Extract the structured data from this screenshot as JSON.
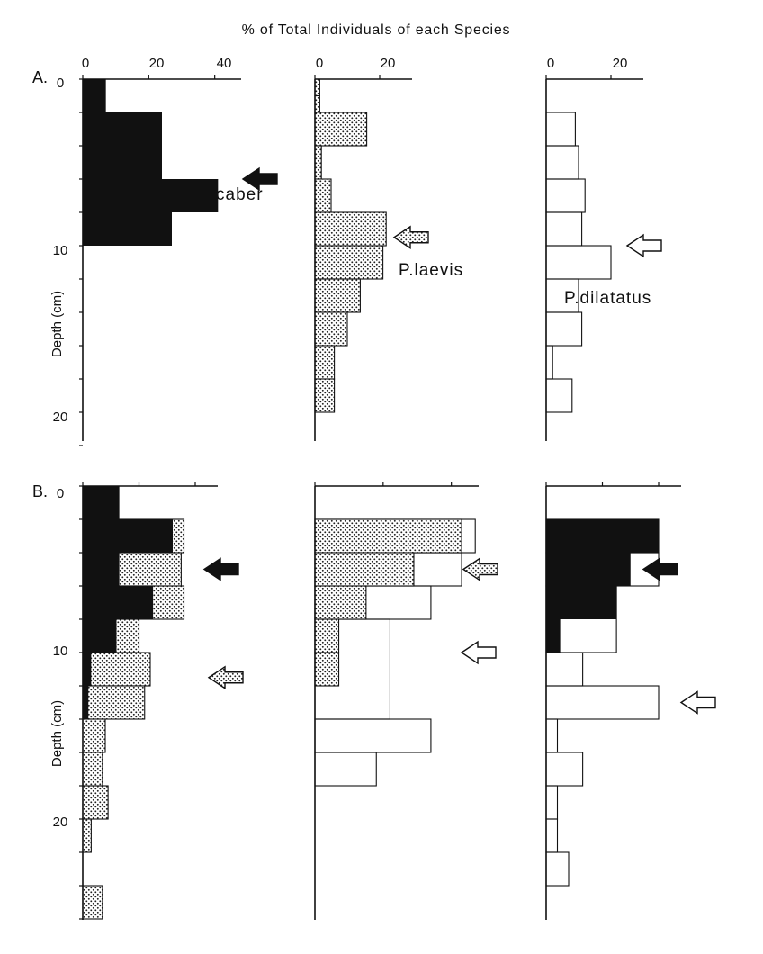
{
  "chart_data": {
    "type": "bar",
    "orientation": "horizontal-depth-histogram",
    "title": "% of Total Individuals of each Species",
    "ylabel": "Depth (cm)",
    "y_ticks": [
      "0",
      "10",
      "20"
    ],
    "panels": [
      {
        "label": "A.",
        "ylim": [
          0,
          22
        ],
        "columns": [
          {
            "species": "P.scaber",
            "x_ticks": [
              "0",
              "20",
              "40"
            ],
            "xlim": [
              0,
              48
            ],
            "arrow": {
              "style": "solid",
              "depth": 6
            },
            "series": [
              {
                "fill": "solid",
                "depth_bins": [
                  0,
                  2,
                  4,
                  6,
                  8
                ],
                "values": [
                  7,
                  24,
                  24,
                  41,
                  27
                ]
              }
            ]
          },
          {
            "species": "P.laevis",
            "x_ticks": [
              "0",
              "20"
            ],
            "xlim": [
              0,
              30
            ],
            "arrow": {
              "style": "stippled",
              "depth": 9.5
            },
            "series": [
              {
                "fill": "stippled",
                "depth_bins": [
                  0,
                  1,
                  2,
                  4,
                  6,
                  8,
                  10,
                  12,
                  14,
                  16,
                  18
                ],
                "values": [
                  1.5,
                  1.5,
                  16,
                  2,
                  5,
                  22,
                  21,
                  14,
                  10,
                  6,
                  6
                ]
              }
            ]
          },
          {
            "species": "P.dilatatus",
            "x_ticks": [
              "0",
              "20"
            ],
            "xlim": [
              0,
              30
            ],
            "arrow": {
              "style": "open",
              "depth": 10
            },
            "series": [
              {
                "fill": "open",
                "depth_bins": [
                  2,
                  4,
                  6,
                  8,
                  10,
                  12,
                  14,
                  16,
                  18
                ],
                "values": [
                  9,
                  10,
                  12,
                  11,
                  20,
                  10,
                  11,
                  2,
                  8
                ]
              }
            ]
          }
        ]
      },
      {
        "label": "B.",
        "ylim": [
          0,
          26
        ],
        "columns": [
          {
            "species": "P.scaber",
            "xlim": [
              0,
              48
            ],
            "arrows": [
              {
                "style": "solid",
                "depth": 5
              },
              {
                "style": "stippled",
                "depth": 11.5
              }
            ],
            "series": [
              {
                "fill": "solid",
                "depth_bins": [
                  0,
                  2,
                  4,
                  6,
                  8,
                  10,
                  12
                ],
                "values": [
                  13,
                  32,
                  13,
                  25,
                  12,
                  3,
                  2
                ]
              },
              {
                "fill": "stippled",
                "depth_bins": [
                  2,
                  4,
                  6,
                  8,
                  10,
                  12,
                  14,
                  16,
                  18,
                  20,
                  22,
                  24
                ],
                "values": [
                  36,
                  35,
                  36,
                  20,
                  24,
                  22,
                  8,
                  7,
                  9,
                  3,
                  0,
                  7
                ]
              }
            ]
          },
          {
            "xlim": [
              0,
              48
            ],
            "arrows": [
              {
                "style": "stippled",
                "depth": 5
              },
              {
                "style": "open",
                "depth": 10
              }
            ],
            "series": [
              {
                "fill": "stippled",
                "depth_bins": [
                  2,
                  4,
                  6,
                  8,
                  10
                ],
                "values": [
                  43,
                  29,
                  15,
                  7,
                  7
                ]
              },
              {
                "fill": "open",
                "depth_bins": [
                  2,
                  4,
                  6,
                  8,
                  14,
                  16
                ],
                "values": [
                  47,
                  43,
                  34,
                  22,
                  34,
                  18
                ]
              }
            ]
          },
          {
            "xlim": [
              0,
              48
            ],
            "arrows": [
              {
                "style": "solid",
                "depth": 5
              },
              {
                "style": "open",
                "depth": 13
              }
            ],
            "series": [
              {
                "fill": "solid",
                "depth_bins": [
                  2,
                  4,
                  6,
                  8
                ],
                "values": [
                  40,
                  30,
                  25,
                  5
                ]
              },
              {
                "fill": "open",
                "depth_bins": [
                  2,
                  4,
                  6,
                  10,
                  12,
                  14,
                  16,
                  18,
                  20,
                  22
                ],
                "values": [
                  40,
                  40,
                  25,
                  13,
                  40,
                  4,
                  13,
                  4,
                  4,
                  8
                ]
              }
            ]
          }
        ]
      }
    ]
  },
  "colors": {
    "ink": "#111111",
    "stipple_dot": "#222222",
    "stipple_bg": "#ffffff",
    "background": "#ffffff"
  }
}
